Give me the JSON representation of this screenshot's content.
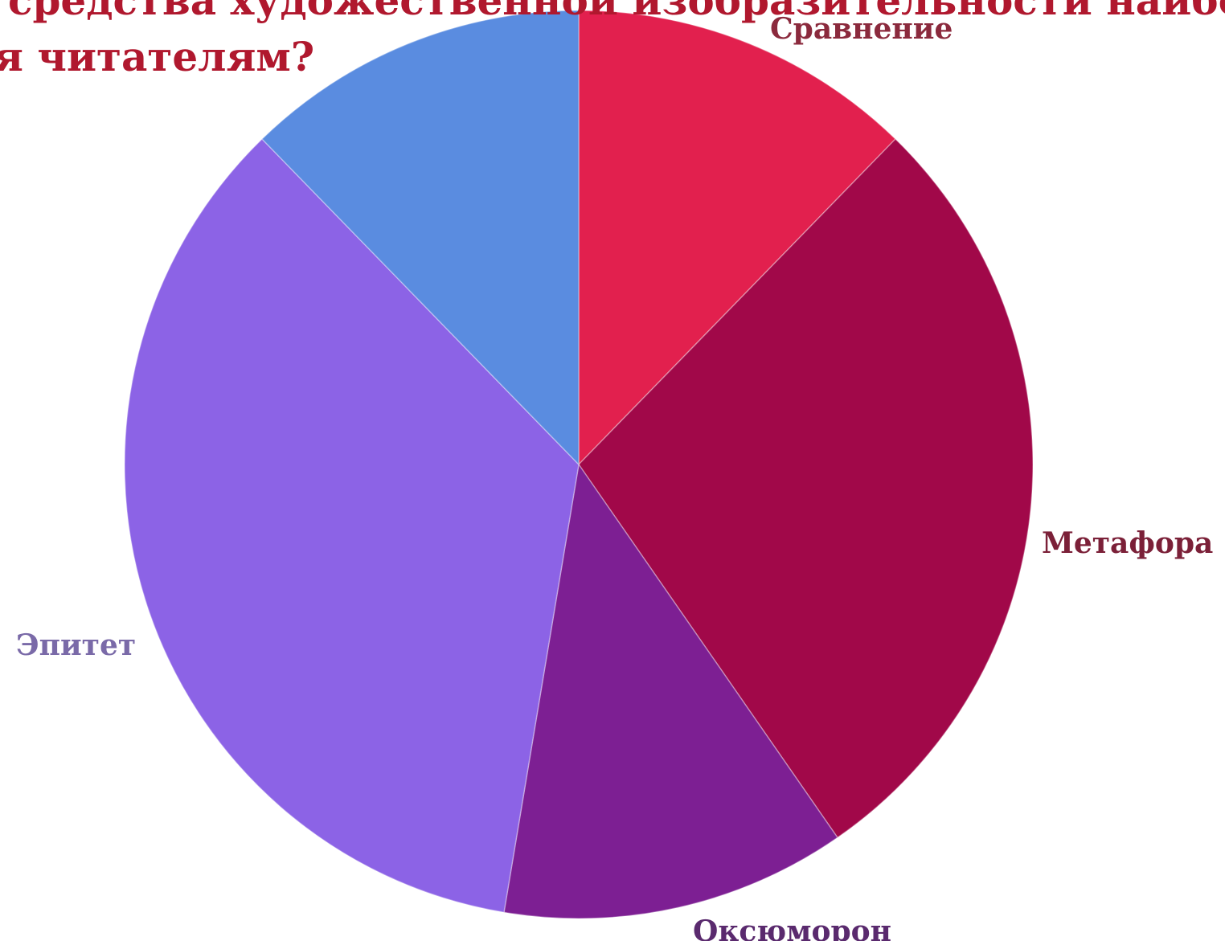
{
  "title_lines": [
    "средства художественной изобразительности наиболее",
    "я читателям?"
  ],
  "chart_data": {
    "type": "pie",
    "title": "средства художественной изобразительности наиболее я читателям?",
    "start_angle_deg": 0,
    "direction": "clockwise",
    "slices": [
      {
        "label": "Сравнение",
        "value": 14,
        "color": "#e2204e",
        "label_color": "#8b2a3d"
      },
      {
        "label": "Метафора",
        "value": 32,
        "color": "#a10849",
        "label_color": "#7b2038"
      },
      {
        "label": "Оксюморон",
        "value": 14,
        "color": "#7d1f93",
        "label_color": "#5a2a6e"
      },
      {
        "label": "Эпитет",
        "value": 40,
        "color": "#8c63e6",
        "label_color": "#7a6aa8"
      },
      {
        "label": "",
        "value": 14,
        "color": "#5a8ce0",
        "label_color": "#7a88c8"
      }
    ]
  }
}
